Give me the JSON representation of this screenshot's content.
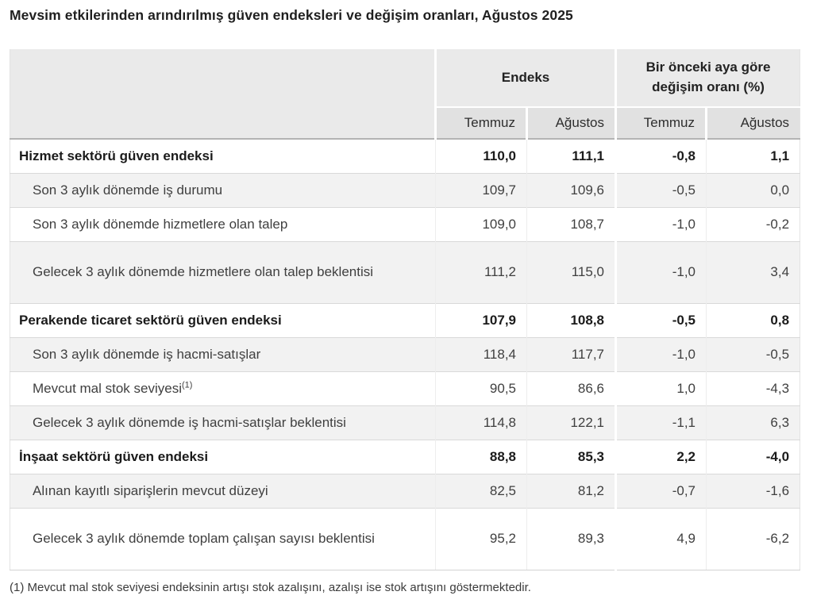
{
  "title": "Mevsim etkilerinden arındırılmış güven endeksleri ve değişim oranları, Ağustos 2025",
  "chart_data": {
    "type": "table",
    "title": "Mevsim etkilerinden arındırılmış güven endeksleri ve değişim oranları, Ağustos 2025",
    "column_groups": [
      {
        "label": "Endeks",
        "span": 2
      },
      {
        "label": "Bir önceki aya göre değişim oranı (%)",
        "span": 2
      }
    ],
    "sub_columns": [
      "Temmuz",
      "Ağustos",
      "Temmuz",
      "Ağustos"
    ],
    "rows": [
      {
        "label": "Hizmet sektörü güven endeksi",
        "bold": true,
        "multiline": false,
        "values": [
          "110,0",
          "111,1",
          "-0,8",
          "1,1"
        ]
      },
      {
        "label": "Son 3 aylık dönemde iş durumu",
        "bold": false,
        "multiline": false,
        "values": [
          "109,7",
          "109,6",
          "-0,5",
          "0,0"
        ]
      },
      {
        "label": "Son 3 aylık dönemde hizmetlere olan talep",
        "bold": false,
        "multiline": false,
        "values": [
          "109,0",
          "108,7",
          "-1,0",
          "-0,2"
        ]
      },
      {
        "label": "Gelecek 3 aylık dönemde hizmetlere olan talep beklentisi",
        "bold": false,
        "multiline": true,
        "values": [
          "111,2",
          "115,0",
          "-1,0",
          "3,4"
        ]
      },
      {
        "label": "Perakende ticaret sektörü güven endeksi",
        "bold": true,
        "multiline": false,
        "values": [
          "107,9",
          "108,8",
          "-0,5",
          "0,8"
        ]
      },
      {
        "label": "Son 3 aylık dönemde iş hacmi-satışlar",
        "bold": false,
        "multiline": false,
        "values": [
          "118,4",
          "117,7",
          "-1,0",
          "-0,5"
        ]
      },
      {
        "label": "Mevcut mal stok seviyesi",
        "sup": "(1)",
        "bold": false,
        "multiline": false,
        "values": [
          "90,5",
          "86,6",
          "1,0",
          "-4,3"
        ]
      },
      {
        "label": "Gelecek 3 aylık dönemde iş hacmi-satışlar beklentisi",
        "bold": false,
        "multiline": false,
        "values": [
          "114,8",
          "122,1",
          "-1,1",
          "6,3"
        ]
      },
      {
        "label": "İnşaat sektörü güven endeksi",
        "bold": true,
        "multiline": false,
        "values": [
          "88,8",
          "85,3",
          "2,2",
          "-4,0"
        ]
      },
      {
        "label": "Alınan kayıtlı siparişlerin mevcut düzeyi",
        "bold": false,
        "multiline": false,
        "values": [
          "82,5",
          "81,2",
          "-0,7",
          "-1,6"
        ]
      },
      {
        "label": "Gelecek 3 aylık dönemde toplam çalışan sayısı beklentisi",
        "bold": false,
        "multiline": true,
        "values": [
          "95,2",
          "89,3",
          "4,9",
          "-6,2"
        ]
      }
    ]
  },
  "footnote": "(1) Mevcut mal stok seviyesi endeksinin artışı stok azalışını, azalışı ise stok artışını göstermektedir.",
  "colors": {
    "header_bg": "#eaeaea",
    "subheader_bg": "#e1e1e1",
    "row_alt_bg": "#f2f2f2",
    "row_border": "#d9d9d9",
    "header_separator": "#b3b3b3",
    "text": "#3f3f3f",
    "bold_text": "#1b1b1b"
  }
}
